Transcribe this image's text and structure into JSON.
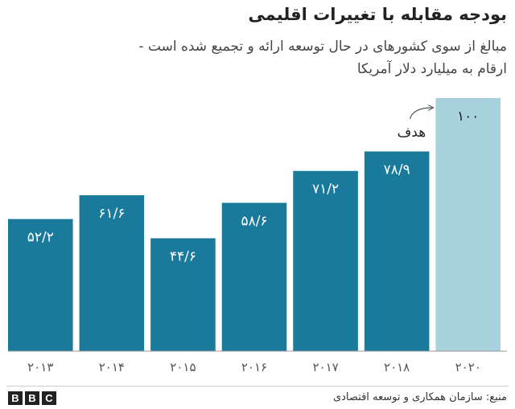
{
  "chart_data": {
    "type": "bar",
    "title": "بودجه مقابله با تغییرات اقلیمی",
    "subtitle_line1": "مبالغ از سوی کشورهای در حال توسعه ارائه و تجمیع شده است -",
    "subtitle_line2": "ارقام به میلیارد دلار آمریکا",
    "categories": [
      "۲۰۱۳",
      "۲۰۱۴",
      "۲۰۱۵",
      "۲۰۱۶",
      "۲۰۱۷",
      "۲۰۱۸",
      "۲۰۲۰"
    ],
    "values": [
      52.2,
      61.6,
      44.6,
      58.6,
      71.2,
      78.9,
      100
    ],
    "value_labels": [
      "۵۲/۲",
      "۶۱/۶",
      "۴۴/۶",
      "۵۸/۶",
      "۷۱/۲",
      "۷۸/۹",
      "۱۰۰"
    ],
    "target_index": 6,
    "target_label": "هدف",
    "ylim": [
      0,
      100
    ],
    "grid": false,
    "colors": {
      "bar": "#1a7a9c",
      "target_bar": "#a6d1dd",
      "bar_label": "#ffffff",
      "target_value_label": "#222222",
      "tick_label": "#555555",
      "axis": "#999999"
    }
  },
  "footer": {
    "logo_letters": [
      "B",
      "B",
      "C"
    ],
    "source": "منبع: سازمان همکاری و توسعه اقتصادی"
  }
}
